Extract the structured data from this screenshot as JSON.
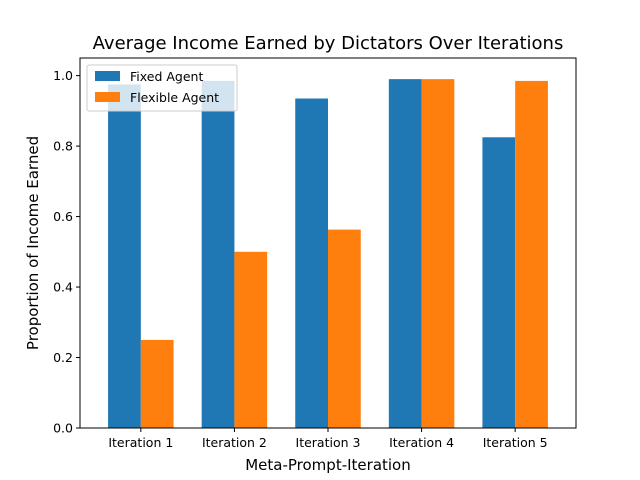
{
  "chart_data": {
    "type": "bar",
    "title": "Average Income Earned by Dictators Over Iterations",
    "xlabel": "Meta-Prompt-Iteration",
    "ylabel": "Proportion of Income Earned",
    "categories": [
      "Iteration 1",
      "Iteration 2",
      "Iteration 3",
      "Iteration 4",
      "Iteration 5"
    ],
    "series": [
      {
        "name": "Fixed Agent",
        "color": "#1f77b4",
        "values": [
          0.975,
          0.985,
          0.935,
          0.99,
          0.825
        ]
      },
      {
        "name": "Flexible Agent",
        "color": "#ff7f0e",
        "values": [
          0.25,
          0.5,
          0.563,
          0.99,
          0.985
        ]
      }
    ],
    "ylim": [
      0,
      1.05
    ],
    "yticks": [
      0.0,
      0.2,
      0.4,
      0.6,
      0.8,
      1.0
    ],
    "ytick_labels": [
      "0.0",
      "0.2",
      "0.4",
      "0.6",
      "0.8",
      "1.0"
    ],
    "grid": false,
    "legend_position": "top-left"
  }
}
